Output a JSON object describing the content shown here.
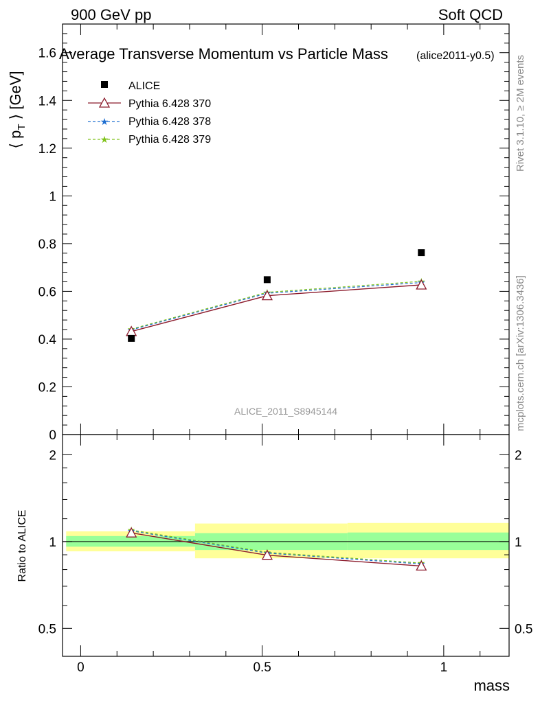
{
  "header": {
    "left": "900 GeV pp",
    "right": "Soft QCD",
    "side_top": "Rivet 3.1.10, ≥ 2M events",
    "side_bottom": "mcplots.cern.ch [arXiv:1306.3436]"
  },
  "chart_data": [
    {
      "type": "scatter",
      "title": "Average Transverse Momentum vs Particle Mass",
      "subtitle": "(alice2011-y0.5)",
      "watermark": "ALICE_2011_S8945144",
      "ylabel_main": "⟨ p",
      "ylabel_sub": "T",
      "ylabel_end": " ⟩ [GeV]",
      "xlim": [
        -0.05,
        1.18
      ],
      "ylim": [
        0,
        1.72
      ],
      "yticks": [
        0,
        0.2,
        0.4,
        0.6,
        0.8,
        1,
        1.2,
        1.4,
        1.6
      ],
      "ytick_labels": [
        "0",
        "0.2",
        "0.4",
        "0.6",
        "0.8",
        "1",
        "1.2",
        "1.4",
        "1.6"
      ],
      "legend_position": "top-left",
      "series": [
        {
          "name": "ALICE",
          "color": "#000000",
          "marker": "square",
          "line": "none",
          "x": [
            0.1396,
            0.5137,
            0.9383
          ],
          "y": [
            0.403,
            0.649,
            0.762
          ]
        },
        {
          "name": "Pythia 6.428 370",
          "color": "#8b1a2b",
          "marker": "triangle",
          "line": "solid",
          "x": [
            0.1396,
            0.5137,
            0.9383
          ],
          "y": [
            0.432,
            0.582,
            0.627
          ]
        },
        {
          "name": "Pythia 6.428 378",
          "color": "#1f6fd1",
          "marker": "star",
          "line": "dashed",
          "x": [
            0.1396,
            0.5137,
            0.9383
          ],
          "y": [
            0.439,
            0.592,
            0.637
          ]
        },
        {
          "name": "Pythia 6.428 379",
          "color": "#7fc21a",
          "marker": "star",
          "line": "dashed",
          "x": [
            0.1396,
            0.5137,
            0.9383
          ],
          "y": [
            0.442,
            0.596,
            0.642
          ]
        }
      ]
    },
    {
      "type": "scatter",
      "ylabel": "Ratio to ALICE",
      "xlabel": "mass",
      "scale": "log",
      "ylim": [
        0.4,
        2.35
      ],
      "xticks": [
        0,
        0.5,
        1
      ],
      "xtick_labels": [
        "0",
        "0.5",
        "1"
      ],
      "yticks": [
        0.5,
        1,
        2
      ],
      "ytick_labels": [
        "0.5",
        "1",
        "2"
      ],
      "bands": [
        {
          "x0": -0.04,
          "x1": 0.315,
          "inner": [
            0.96,
            1.045
          ],
          "outer": [
            0.925,
            1.085
          ]
        },
        {
          "x0": 0.315,
          "x1": 0.735,
          "inner": [
            0.935,
            1.07
          ],
          "outer": [
            0.875,
            1.155
          ]
        },
        {
          "x0": 0.735,
          "x1": 1.18,
          "inner": [
            0.935,
            1.075
          ],
          "outer": [
            0.875,
            1.16
          ]
        }
      ],
      "band_colors": {
        "inner": "#99ff99",
        "outer": "#ffff99"
      },
      "series": [
        {
          "name": "Pythia 6.428 370",
          "color": "#8b1a2b",
          "marker": "triangle",
          "line": "solid",
          "x": [
            0.1396,
            0.5137,
            0.9383
          ],
          "y": [
            1.072,
            0.897,
            0.823
          ]
        },
        {
          "name": "Pythia 6.428 378",
          "color": "#1f6fd1",
          "marker": "star",
          "line": "dashed",
          "x": [
            0.1396,
            0.5137,
            0.9383
          ],
          "y": [
            1.089,
            0.912,
            0.836
          ]
        },
        {
          "name": "Pythia 6.428 379",
          "color": "#7fc21a",
          "marker": "star",
          "line": "dashed",
          "x": [
            0.1396,
            0.5137,
            0.9383
          ],
          "y": [
            1.097,
            0.918,
            0.842
          ]
        }
      ]
    }
  ]
}
